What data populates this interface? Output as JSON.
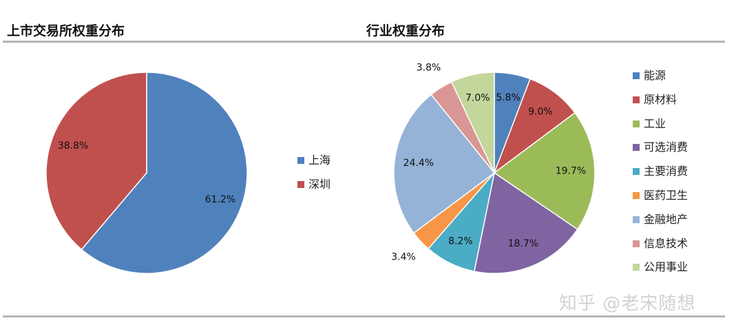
{
  "colors": {
    "shanghai": "#4f81bd",
    "shenzhen": "#c0504d",
    "energy": "#4f81bd",
    "materials": "#c0504d",
    "industrials": "#9bbb59",
    "consumer_discretionary": "#8064a2",
    "consumer_staples": "#4bacc6",
    "healthcare": "#f79646",
    "financials_real_estate": "#95b3d7",
    "it": "#d99694",
    "utilities": "#c3d69b"
  },
  "chart_data": [
    {
      "type": "pie",
      "title": "上市交易所权重分布",
      "categories": [
        "上海",
        "深圳"
      ],
      "values": [
        61.2,
        38.8
      ],
      "value_labels": [
        "61.2%",
        "38.8%"
      ],
      "legend": "right",
      "start": "12 o'clock, clockwise"
    },
    {
      "type": "pie",
      "title": "行业权重分布",
      "categories": [
        "能源",
        "原材料",
        "工业",
        "可选消费",
        "主要消费",
        "医药卫生",
        "金融地产",
        "信息技术",
        "公用事业"
      ],
      "values": [
        5.8,
        9.0,
        19.7,
        18.7,
        8.2,
        3.4,
        24.4,
        3.8,
        7.0
      ],
      "value_labels": [
        "5.8%",
        "9.0%",
        "19.7%",
        "18.7%",
        "8.2%",
        "3.4%",
        "24.4%",
        "3.8%",
        "7.0%"
      ],
      "legend": "right",
      "start": "12 o'clock, clockwise"
    }
  ],
  "watermark": "知乎 @老宋随想"
}
